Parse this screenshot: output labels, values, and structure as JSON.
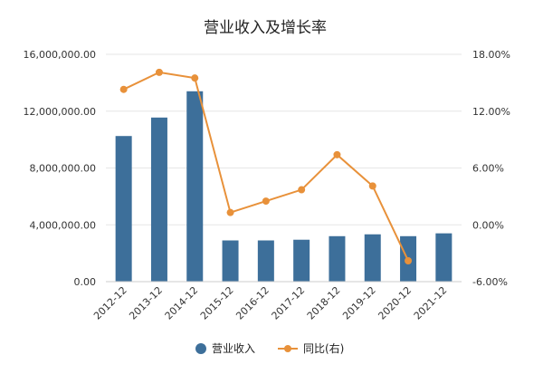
{
  "chart_data": {
    "type": "bar+line",
    "title": "营业收入及增长率",
    "categories": [
      "2012-12",
      "2013-12",
      "2014-12",
      "2015-12",
      "2016-12",
      "2017-12",
      "2018-12",
      "2019-12",
      "2020-12",
      "2021-12"
    ],
    "series": [
      {
        "name": "营业收入",
        "type": "bar",
        "axis": "left",
        "color": "#3d6f9a",
        "values": [
          10250000,
          11550000,
          13400000,
          2900000,
          2900000,
          2950000,
          3200000,
          3330000,
          3200000,
          3400000
        ]
      },
      {
        "name": "同比(右)",
        "type": "line",
        "axis": "right",
        "color": "#e8913a",
        "values": [
          14.3,
          16.1,
          15.5,
          1.3,
          2.5,
          3.7,
          7.4,
          4.1,
          -3.8,
          null
        ]
      }
    ],
    "y_left": {
      "range": [
        0,
        16000000
      ],
      "ticks": [
        0,
        4000000,
        8000000,
        12000000,
        16000000
      ],
      "tick_labels": [
        "0.00",
        "4,000,000.00",
        "8,000,000.00",
        "12,000,000.00",
        "16,000,000.00"
      ]
    },
    "y_right": {
      "range": [
        -6,
        18
      ],
      "ticks": [
        -6,
        0,
        6,
        12,
        18
      ],
      "tick_labels": [
        "-6.00%",
        "0.00%",
        "6.00%",
        "12.00%",
        "18.00%"
      ]
    },
    "grid": true,
    "legend_position": "bottom"
  }
}
